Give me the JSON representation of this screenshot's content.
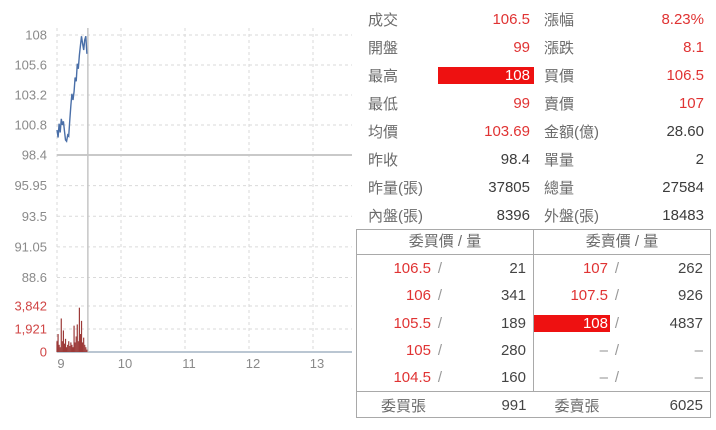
{
  "colors": {
    "accent_red": "#e03333",
    "highlight_bg": "#ee1111",
    "highlight_text": "#ffffff",
    "dark_value": "#3c3c3c",
    "label_gray": "#6b6b6b",
    "price_line": "#4a6fa8",
    "volume_bar": "#9c3a38",
    "grid": "#dadada",
    "axis_text": "#8a8a8a",
    "volume_axis_text": "#d04545",
    "prev_close_line": "#c9c9c9",
    "baseline": "#bac6d2",
    "current_time_line": "#c6c6c6",
    "table_border": "#a9a9a9"
  },
  "chart_data": {
    "type": "line",
    "subtype": "intraday-price-with-volume",
    "title": "",
    "xlabel": "",
    "ylabel": "",
    "grid": true,
    "legend": false,
    "x_axis": {
      "tick_labels": [
        "9",
        "10",
        "11",
        "12",
        "13"
      ]
    },
    "y_axis_price": {
      "tick_labels": [
        "108",
        "105.6",
        "103.2",
        "100.8",
        "98.4",
        "95.95",
        "93.5",
        "91.05",
        "88.6"
      ],
      "range": [
        88.6,
        108
      ],
      "prev_close": 98.4
    },
    "y_axis_volume": {
      "tick_labels": [
        "3,842",
        "1,921",
        "0"
      ]
    },
    "series": [
      {
        "name": "price",
        "x_unit": "minutes_from_open",
        "values": [
          100.4,
          99.8,
          100.9,
          100.2,
          101.3,
          100.8,
          101.1,
          100.3,
          99.6,
          99.5,
          100.0,
          99.9,
          101.2,
          102.4,
          103.3,
          102.8,
          103.5,
          104.6,
          104.3,
          105.7,
          105.3,
          106.4,
          107.2,
          107.9,
          107.3,
          106.8,
          107.6,
          107.9,
          106.5
        ]
      },
      {
        "name": "volume",
        "x_unit": "minutes_from_open",
        "values": [
          900,
          1500,
          600,
          400,
          2800,
          900,
          1800,
          700,
          1100,
          400,
          600,
          900,
          500,
          800,
          600,
          400,
          2200,
          800,
          1300,
          2300,
          900,
          3700,
          1500,
          2600,
          800,
          1200,
          600,
          400,
          200
        ]
      }
    ]
  },
  "quote": {
    "rows": [
      {
        "l1": "成交",
        "v1": "106.5",
        "l2": "漲幅",
        "v2": "8.23%"
      },
      {
        "l1": "開盤",
        "v1": "99",
        "l2": "漲跌",
        "v2": "8.1"
      },
      {
        "l1": "最高",
        "v1": "108",
        "l2": "買價",
        "v2": "106.5"
      },
      {
        "l1": "最低",
        "v1": "99",
        "l2": "賣價",
        "v2": "107"
      },
      {
        "l1": "均價",
        "v1": "103.69",
        "l2": "金額(億)",
        "v2": "28.60"
      },
      {
        "l1": "昨收",
        "v1": "98.4",
        "l2": "單量",
        "v2": "2"
      },
      {
        "l1": "昨量(張)",
        "v1": "37805",
        "l2": "總量",
        "v2": "27584"
      },
      {
        "l1": "內盤(張)",
        "v1": "8396",
        "l2": "外盤(張)",
        "v2": "18483"
      }
    ]
  },
  "order_book": {
    "bid_header": "委買價 / 量",
    "ask_header": "委賣價 / 量",
    "slash": "/",
    "bids": [
      {
        "price": "106.5",
        "qty": "21"
      },
      {
        "price": "106",
        "qty": "341"
      },
      {
        "price": "105.5",
        "qty": "189"
      },
      {
        "price": "105",
        "qty": "280"
      },
      {
        "price": "104.5",
        "qty": "160"
      }
    ],
    "asks": [
      {
        "price": "107",
        "qty": "262"
      },
      {
        "price": "107.5",
        "qty": "926"
      },
      {
        "price": "108",
        "qty": "4837"
      },
      {
        "price": "–",
        "qty": "–"
      },
      {
        "price": "–",
        "qty": "–"
      }
    ],
    "bid_total_label": "委買張",
    "bid_total": "991",
    "ask_total_label": "委賣張",
    "ask_total": "6025"
  }
}
